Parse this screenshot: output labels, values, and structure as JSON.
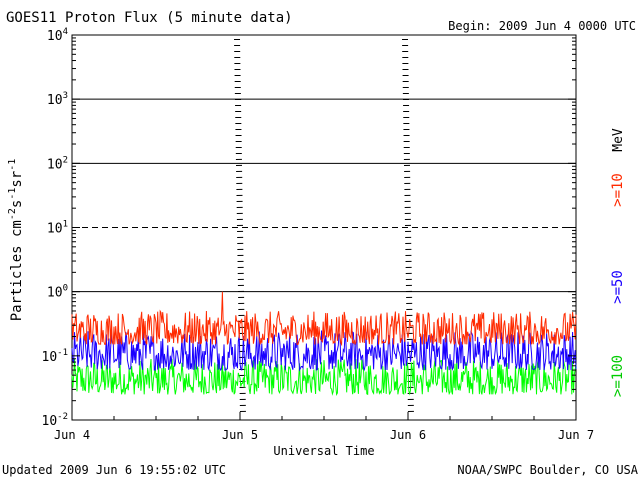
{
  "header": {
    "title": "GOES11 Proton Flux (5 minute data)",
    "begin": "Begin: 2009 Jun 4 0000 UTC"
  },
  "footer": {
    "updated": "Updated 2009 Jun  6 19:55:02 UTC",
    "credit": "NOAA/SWPC Boulder, CO USA"
  },
  "colors": {
    "ge10": "#ff2a00",
    "ge50": "#1a00ff",
    "ge100": "#00ff00",
    "axis": "#000000"
  },
  "chart_data": {
    "type": "line",
    "title": "GOES11 Proton Flux (5 minute data)",
    "xlabel": "Universal Time",
    "ylabel": "Particles cm-2s-1sr-1",
    "yscale": "log",
    "ylim": [
      0.01,
      10000
    ],
    "xlim": [
      "2009-06-04 00:00",
      "2009-06-07 00:00"
    ],
    "x_tick_labels": [
      "Jun 4",
      "Jun 5",
      "Jun 6",
      "Jun 7"
    ],
    "y_tick_labels": [
      {
        "base": "10",
        "exp": "-2"
      },
      {
        "base": "10",
        "exp": "-1"
      },
      {
        "base": "10",
        "exp": "0"
      },
      {
        "base": "10",
        "exp": "1"
      },
      {
        "base": "10",
        "exp": "2"
      },
      {
        "base": "10",
        "exp": "3"
      },
      {
        "base": "10",
        "exp": "4"
      }
    ],
    "y_tick_values": [
      0.01,
      0.1,
      1,
      10,
      100,
      1000,
      10000
    ],
    "reference_lines": [
      {
        "value": 1,
        "style": "solid"
      },
      {
        "value": 10,
        "style": "dashed"
      },
      {
        "value": 100,
        "style": "solid"
      },
      {
        "value": 1000,
        "style": "solid"
      }
    ],
    "unit_label": "MeV",
    "series": [
      {
        "name": ">=10",
        "color": "#ff2a00",
        "typical_range": [
          0.15,
          0.5
        ],
        "peak": {
          "x": "2009-06-04 21:30",
          "y": 1.0
        }
      },
      {
        "name": ">=50",
        "color": "#1a00ff",
        "typical_range": [
          0.06,
          0.25
        ]
      },
      {
        "name": ">=100",
        "color": "#00ff00",
        "typical_range": [
          0.025,
          0.09
        ]
      }
    ],
    "legend_position": "right-vertical"
  }
}
